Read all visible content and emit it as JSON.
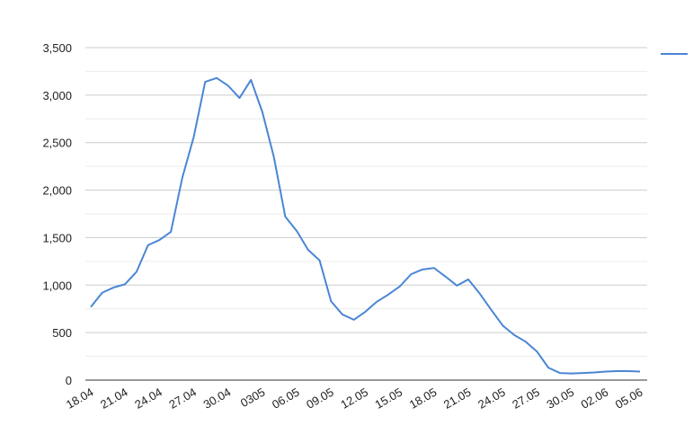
{
  "chart_data": {
    "type": "line",
    "categories": [
      "18.04",
      null,
      null,
      "21.04",
      null,
      null,
      "24.04",
      null,
      null,
      "27.04",
      null,
      null,
      "30.04",
      null,
      null,
      "0305",
      null,
      null,
      "06.05",
      null,
      null,
      "09.05",
      null,
      null,
      "12.05",
      null,
      null,
      "15.05",
      null,
      null,
      "18.05",
      null,
      null,
      "21.05",
      null,
      null,
      "24.05",
      null,
      null,
      "27.05",
      null,
      null,
      "30.05",
      null,
      null,
      "02.06",
      null,
      null,
      "05.06"
    ],
    "series": [
      {
        "color": "#4a86d4",
        "values": [
          770,
          920,
          975,
          1010,
          1140,
          1420,
          1475,
          1560,
          2130,
          2560,
          3140,
          3180,
          3100,
          2970,
          3160,
          2820,
          2350,
          1720,
          1570,
          1370,
          1260,
          830,
          690,
          635,
          720,
          825,
          900,
          985,
          1115,
          1165,
          1180,
          1090,
          995,
          1060,
          910,
          740,
          575,
          475,
          405,
          300,
          130,
          75,
          70,
          75,
          80,
          90,
          95,
          95,
          90
        ]
      }
    ],
    "ylim": [
      0,
      3500
    ],
    "yticks": [
      0,
      500,
      {
        "value": 1000,
        "label": "1,000"
      },
      {
        "value": 1500,
        "label": "1,500"
      },
      {
        "value": 2000,
        "label": "2,000"
      },
      {
        "value": 2500,
        "label": "2,500"
      },
      {
        "value": 3000,
        "label": "3,000"
      },
      {
        "value": 3500,
        "label": "3,500"
      }
    ],
    "grid": true
  }
}
